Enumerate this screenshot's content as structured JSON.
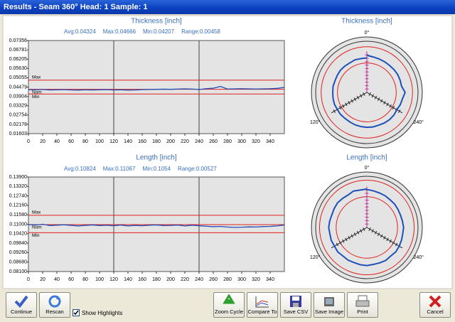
{
  "window": {
    "title": "Results - Seam 360° Head: 1  Sample: 1"
  },
  "chart_data": [
    {
      "type": "line",
      "title": "Thickness [inch]",
      "stats": [
        "Avg:0.04324",
        "Max:0.04666",
        "Min:0.04207",
        "Range:0.00458"
      ],
      "x": [
        0,
        10,
        20,
        30,
        40,
        50,
        60,
        70,
        80,
        90,
        100,
        110,
        120,
        130,
        140,
        150,
        160,
        170,
        180,
        190,
        200,
        210,
        220,
        230,
        240,
        250,
        260,
        270,
        280,
        290,
        300,
        310,
        320,
        330,
        340,
        350,
        360
      ],
      "series": [
        {
          "color": "#1f4fb8",
          "values": [
            0.0432,
            0.0431,
            0.0433,
            0.043,
            0.0431,
            0.0432,
            0.043,
            0.0429,
            0.0431,
            0.043,
            0.0431,
            0.0432,
            0.043,
            0.0431,
            0.0429,
            0.043,
            0.0432,
            0.0433,
            0.0434,
            0.0435,
            0.0434,
            0.0436,
            0.0437,
            0.0436,
            0.0433,
            0.0438,
            0.0441,
            0.0452,
            0.0436,
            0.0437,
            0.0438,
            0.0437,
            0.0436,
            0.0437,
            0.0438,
            0.044,
            0.0446
          ]
        }
      ],
      "ref_lines": [
        {
          "label": "Max",
          "value": 0.0491
        },
        {
          "label": "Nom",
          "value": 0.0434
        },
        {
          "label": "Min",
          "value": 0.0405
        }
      ],
      "ref_color": "#e02020",
      "dividers": [
        120,
        240
      ],
      "xlim": [
        0,
        360
      ],
      "xticks": [
        0,
        20,
        40,
        60,
        80,
        100,
        120,
        140,
        160,
        180,
        200,
        220,
        240,
        260,
        280,
        300,
        320,
        340
      ],
      "ylim": [
        0.01603,
        0.07356
      ],
      "yticks": [
        0.01603,
        0.02178,
        0.02754,
        0.03329,
        0.03904,
        0.04479,
        0.05055,
        {
          "value": 0.0563,
          "label": "0.05630"
        },
        0.06205,
        0.06781,
        0.07356
      ]
    },
    {
      "type": "line",
      "title": "Length [inch]",
      "stats": [
        "Avg:0.10824",
        "Max:0.11067",
        "Min:0.1054",
        "Range:0.00527"
      ],
      "x": [
        0,
        10,
        20,
        30,
        40,
        50,
        60,
        70,
        80,
        90,
        100,
        110,
        120,
        130,
        140,
        150,
        160,
        170,
        180,
        190,
        200,
        210,
        220,
        230,
        240,
        250,
        260,
        270,
        280,
        290,
        300,
        310,
        320,
        330,
        340,
        350,
        360
      ],
      "series": [
        {
          "color": "#1f4fb8",
          "values": [
            0.1098,
            0.1095,
            0.11,
            0.1092,
            0.1094,
            0.1097,
            0.1093,
            0.109,
            0.1093,
            0.1096,
            0.1092,
            0.1094,
            0.1091,
            0.1095,
            0.109,
            0.1093,
            0.1091,
            0.1094,
            0.1096,
            0.1092,
            0.1093,
            0.1095,
            0.109,
            0.1094,
            0.1091,
            0.1088,
            0.1085,
            0.1087,
            0.1083,
            0.1081,
            0.1082,
            0.1084,
            0.1083,
            0.1086,
            0.1087,
            0.109,
            0.1095
          ]
        }
      ],
      "ref_lines": [
        {
          "label": "Max",
          "value": 0.1155
        },
        {
          "label": "Nom",
          "value": 0.1098
        },
        {
          "label": "Min",
          "value": 0.1048
        }
      ],
      "ref_color": "#e02020",
      "dividers": [
        120,
        240
      ],
      "xlim": [
        0,
        360
      ],
      "xticks": [
        0,
        20,
        40,
        60,
        80,
        100,
        120,
        140,
        160,
        180,
        200,
        220,
        240,
        260,
        280,
        300,
        320,
        340
      ],
      "ylim": [
        0.081,
        0.139
      ],
      "yticks": [
        {
          "value": 0.081,
          "label": "0.08100"
        },
        {
          "value": 0.0868,
          "label": "0.08680"
        },
        {
          "value": 0.0926,
          "label": "0.09260"
        },
        {
          "value": 0.0984,
          "label": "0.09840"
        },
        {
          "value": 0.1042,
          "label": "0.10420"
        },
        {
          "value": 0.11,
          "label": "0.11000"
        },
        {
          "value": 0.1158,
          "label": "0.11580"
        },
        {
          "value": 0.1216,
          "label": "0.12160"
        },
        {
          "value": 0.1274,
          "label": "0.12740"
        },
        {
          "value": 0.1332,
          "label": "0.13320"
        },
        {
          "value": 0.139,
          "label": "0.13900"
        }
      ]
    },
    {
      "type": "polar",
      "title": "Thickness [inch]",
      "theta": [
        0,
        10,
        20,
        30,
        40,
        50,
        60,
        70,
        80,
        90,
        100,
        110,
        120,
        130,
        140,
        150,
        160,
        170,
        180,
        190,
        200,
        210,
        220,
        230,
        240,
        250,
        260,
        270,
        280,
        290,
        300,
        310,
        320,
        330,
        340,
        350,
        360
      ],
      "values": [
        0.0432,
        0.0431,
        0.0433,
        0.043,
        0.0431,
        0.0432,
        0.043,
        0.0429,
        0.0431,
        0.043,
        0.0431,
        0.0432,
        0.043,
        0.0431,
        0.0429,
        0.043,
        0.0432,
        0.0433,
        0.0434,
        0.0435,
        0.0434,
        0.0436,
        0.0437,
        0.0436,
        0.0433,
        0.0438,
        0.0441,
        0.0452,
        0.0436,
        0.0437,
        0.0438,
        0.0437,
        0.0436,
        0.0437,
        0.0438,
        0.044,
        0.0446
      ],
      "color": "#1f4fb8",
      "rings": [
        0.0491,
        0.0405
      ],
      "ring_color": "#e02020",
      "rlim": [
        0.025,
        0.052
      ],
      "theta_ticks": [
        {
          "value": 0,
          "label": "0°"
        },
        {
          "value": 120,
          "label": "120°"
        },
        {
          "value": 240,
          "label": "240°"
        }
      ]
    },
    {
      "type": "polar",
      "title": "Length [inch]",
      "theta": [
        0,
        10,
        20,
        30,
        40,
        50,
        60,
        70,
        80,
        90,
        100,
        110,
        120,
        130,
        140,
        150,
        160,
        170,
        180,
        190,
        200,
        210,
        220,
        230,
        240,
        250,
        260,
        270,
        280,
        290,
        300,
        310,
        320,
        330,
        340,
        350,
        360
      ],
      "values": [
        0.1098,
        0.1095,
        0.11,
        0.1092,
        0.1094,
        0.1097,
        0.1093,
        0.109,
        0.1093,
        0.1096,
        0.1092,
        0.1094,
        0.1091,
        0.1095,
        0.109,
        0.1093,
        0.1091,
        0.1094,
        0.1096,
        0.1092,
        0.1093,
        0.1095,
        0.109,
        0.1094,
        0.1091,
        0.1088,
        0.1085,
        0.1087,
        0.1083,
        0.1081,
        0.1082,
        0.1084,
        0.1083,
        0.1086,
        0.1087,
        0.109,
        0.1095
      ],
      "color": "#1f4fb8",
      "rings": [
        0.1155,
        0.1048
      ],
      "ring_color": "#e02020",
      "rlim": [
        0.085,
        0.118
      ],
      "theta_ticks": [
        {
          "value": 0,
          "label": "0°"
        },
        {
          "value": 120,
          "label": "120°"
        },
        {
          "value": 240,
          "label": "240°"
        }
      ]
    }
  ],
  "toolbar": {
    "buttons": [
      {
        "label": "Continue"
      },
      {
        "label": "Rescan"
      },
      {
        "label": "Zoom Cycle"
      },
      {
        "label": "Compare To"
      },
      {
        "label": "Save CSV"
      },
      {
        "label": "Save Image"
      },
      {
        "label": "Print"
      },
      {
        "label": "Cancel"
      }
    ],
    "checkbox": {
      "label": "Show Highlights",
      "checked": true
    }
  }
}
